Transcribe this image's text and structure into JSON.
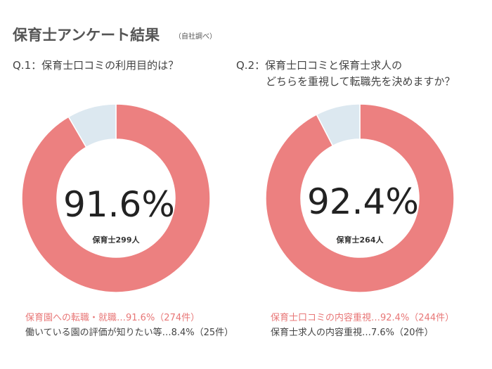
{
  "header": {
    "title": "保育士アンケート結果",
    "note": "（自社調べ）"
  },
  "chart_data": [
    {
      "type": "pie",
      "donut": true,
      "question": "Q.1：保育士口コミの利用目的は？",
      "center_value": "91.6%",
      "center_label": "保育士299人",
      "slices": [
        {
          "label": "保育園への転職・就職",
          "value": 91.6,
          "count": 274,
          "color": "#ec8080",
          "legend": "保育園への転職・就職…91.6%（274件）"
        },
        {
          "label": "働いている園の評価が知りたい等",
          "value": 8.4,
          "count": 25,
          "color": "#dce8f0",
          "legend": "働いている園の評価が知りたい等…8.4%（25件）"
        }
      ]
    },
    {
      "type": "pie",
      "donut": true,
      "question": "Q.2：保育士口コミと保育士求人の",
      "question_line2": "どちらを重視して転職先を決めますか？",
      "center_value": "92.4%",
      "center_label": "保育士264人",
      "slices": [
        {
          "label": "保育士口コミの内容重視",
          "value": 92.4,
          "count": 244,
          "color": "#ec8080",
          "legend": "保育士口コミの内容重視…92.4%（244件）"
        },
        {
          "label": "保育士求人の内容重視",
          "value": 7.6,
          "count": 20,
          "color": "#dce8f0",
          "legend": "保育士求人の内容重視…7.6%（20件）"
        }
      ]
    }
  ]
}
